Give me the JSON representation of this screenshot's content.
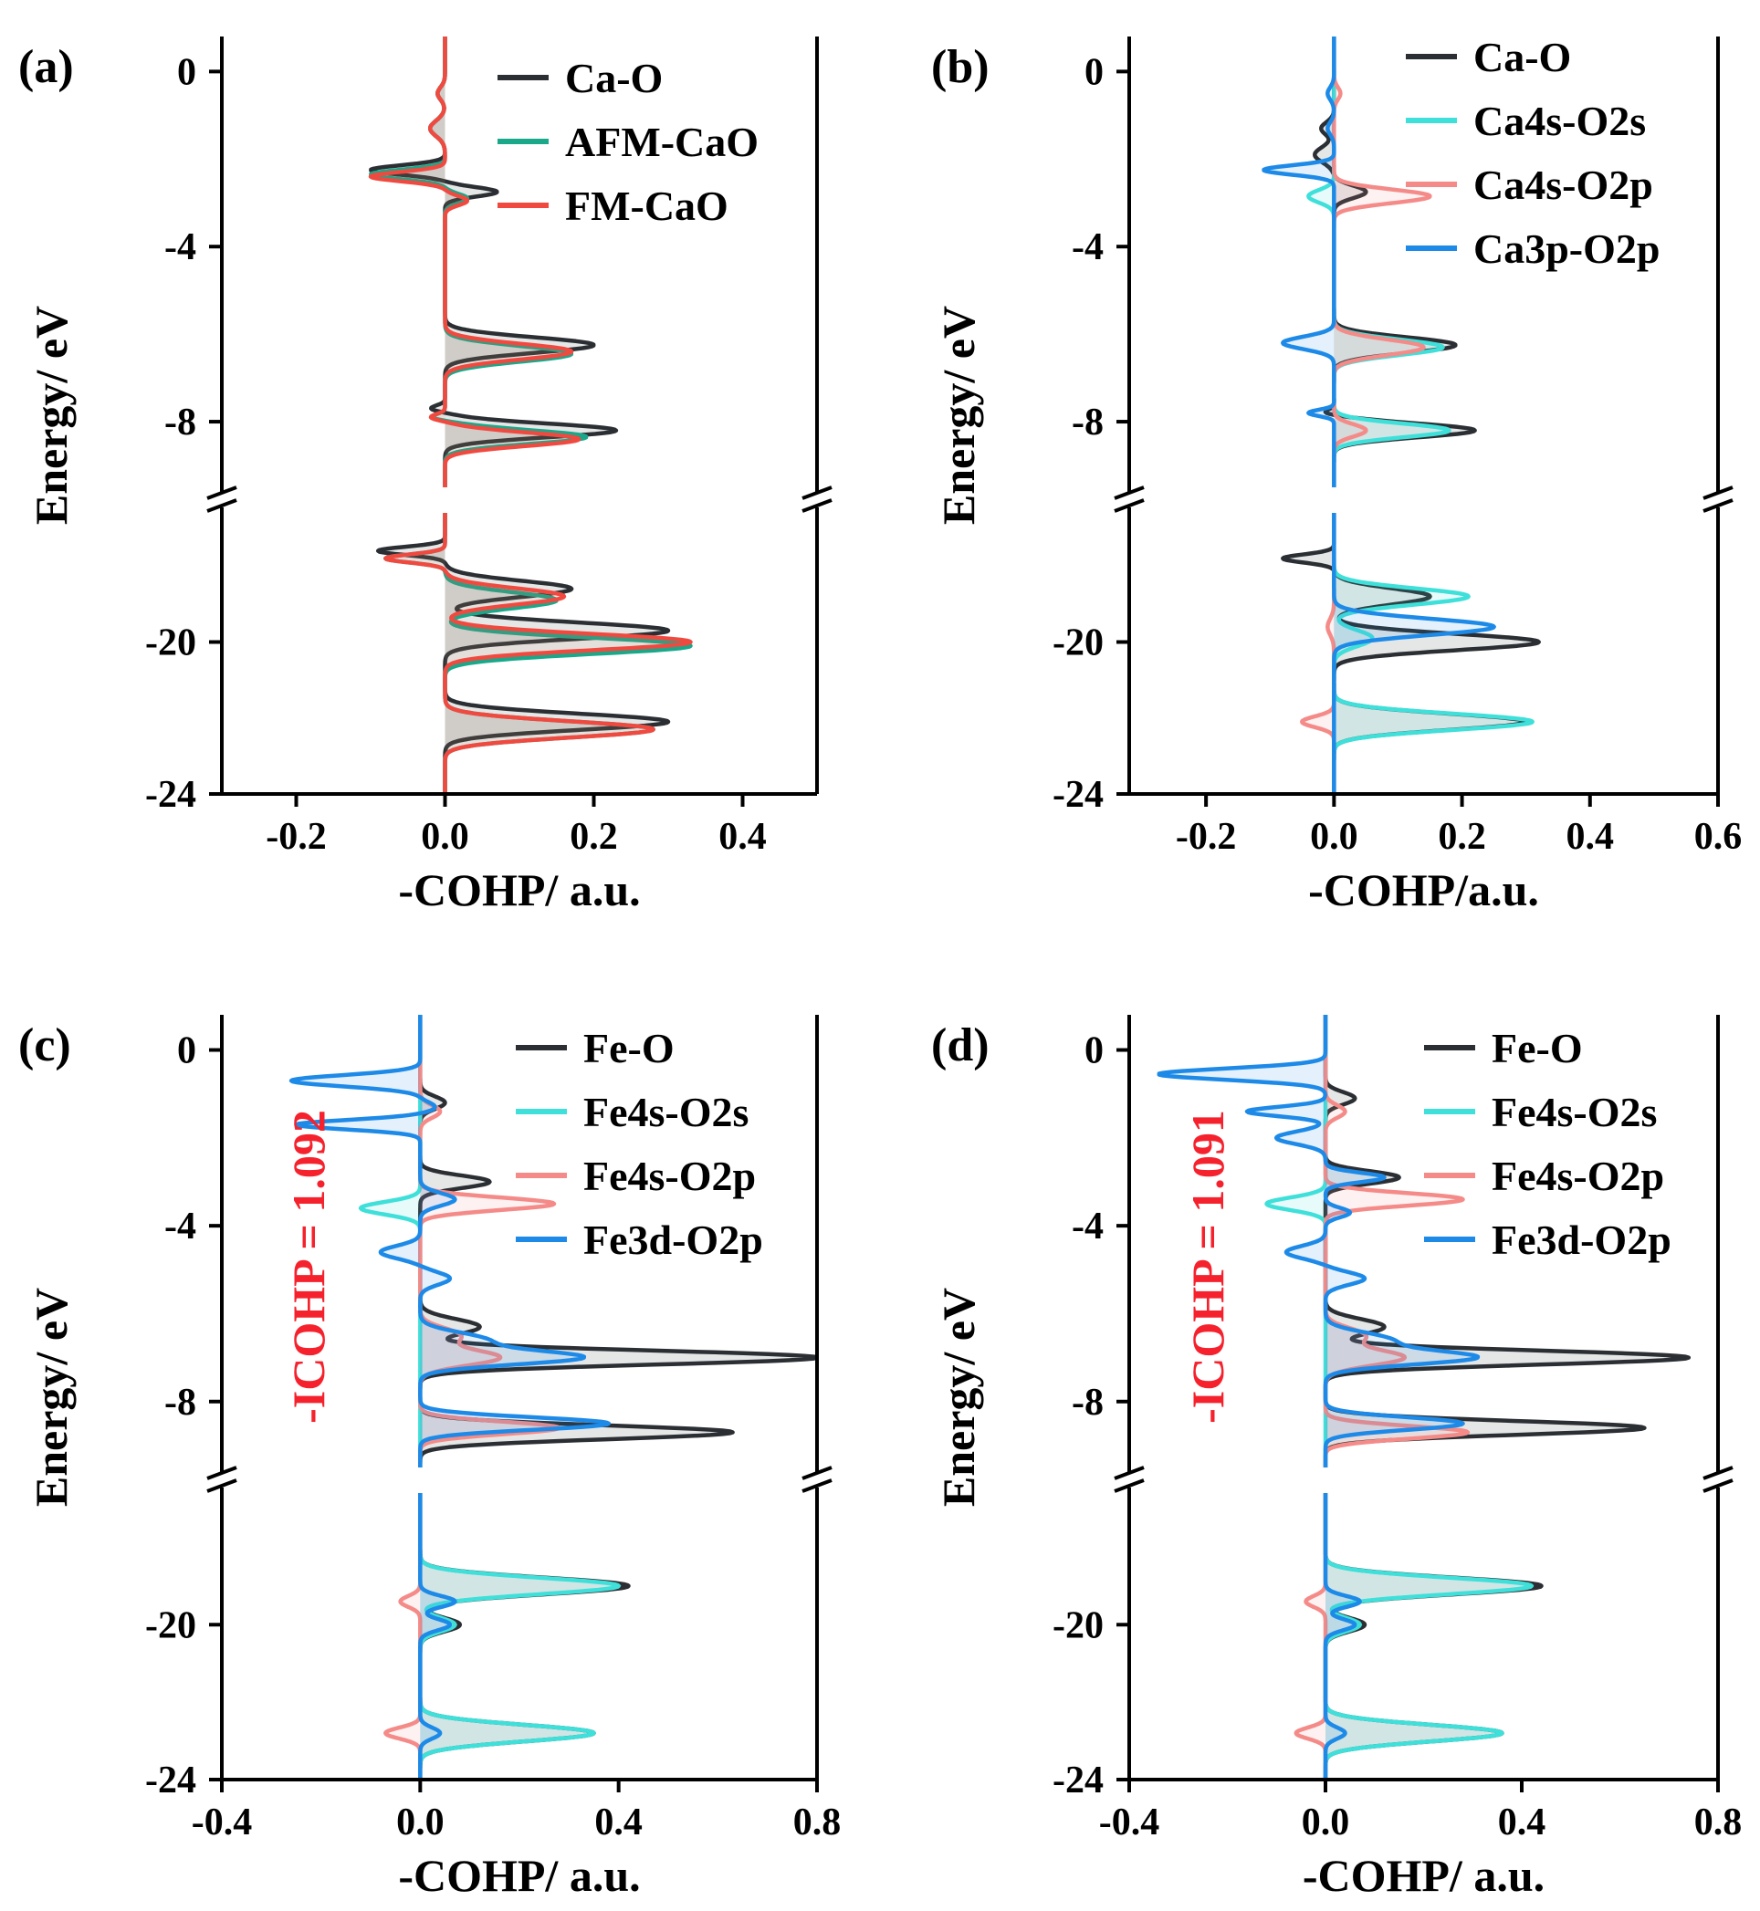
{
  "figure_title": "",
  "colors": {
    "black": "#2b2f33",
    "green": "#1aa88a",
    "red": "#f04a40",
    "cyan": "#3fe0da",
    "pink": "#f48b88",
    "blue": "#1d8ae8"
  },
  "chart_data": [
    {
      "type": "line",
      "panel": "(a)",
      "xlabel": "-COHP/ a.u.",
      "ylabel": "Energy/ eV",
      "xlim": [
        -0.3,
        0.5
      ],
      "ylim_upper": [
        -9.5,
        0.8
      ],
      "ylim_lower": [
        -24,
        -16.6
      ],
      "x_ticks": [
        "-0.2",
        "0.0",
        "0.2",
        "0.4"
      ],
      "x_tick_values": [
        -0.2,
        0.0,
        0.2,
        0.4
      ],
      "y_ticks_upper": [
        "0",
        "-4",
        "-8"
      ],
      "y_tick_values_upper": [
        0,
        -4,
        -8
      ],
      "y_ticks_lower": [
        "-20",
        "-24"
      ],
      "y_tick_values_lower": [
        -20,
        -24
      ],
      "legend": [
        "Ca-O",
        "AFM-CaO",
        "FM-CaO"
      ],
      "annotation": "",
      "series": [
        {
          "name": "Ca-O",
          "color": "#2b2f33",
          "peaks": [
            [
              -0.5,
              -0.01,
              0.2
            ],
            [
              -1.3,
              -0.02,
              0.25
            ],
            [
              -2.25,
              -0.1,
              0.15
            ],
            [
              -2.75,
              0.07,
              0.15
            ],
            [
              -6.25,
              0.2,
              0.25
            ],
            [
              -7.7,
              -0.02,
              0.1
            ],
            [
              -8.2,
              0.23,
              0.22
            ],
            [
              -17.6,
              -0.09,
              0.15
            ],
            [
              -18.6,
              0.17,
              0.3
            ],
            [
              -19.7,
              0.3,
              0.3
            ],
            [
              -22.1,
              0.3,
              0.3
            ]
          ]
        },
        {
          "name": "AFM-CaO",
          "color": "#1aa88a",
          "peaks": [
            [
              -0.5,
              -0.01,
              0.2
            ],
            [
              -1.3,
              -0.02,
              0.25
            ],
            [
              -2.35,
              -0.1,
              0.15
            ],
            [
              -2.9,
              0.03,
              0.15
            ],
            [
              -6.45,
              0.17,
              0.25
            ],
            [
              -7.9,
              -0.02,
              0.1
            ],
            [
              -8.35,
              0.19,
              0.22
            ],
            [
              -17.8,
              -0.08,
              0.15
            ],
            [
              -18.9,
              0.15,
              0.3
            ],
            [
              -20.1,
              0.33,
              0.3
            ],
            [
              -22.3,
              0.28,
              0.3
            ]
          ]
        },
        {
          "name": "FM-CaO",
          "color": "#f04a40",
          "peaks": [
            [
              -0.5,
              -0.01,
              0.2
            ],
            [
              -1.3,
              -0.02,
              0.25
            ],
            [
              -2.4,
              -0.1,
              0.15
            ],
            [
              -2.95,
              0.03,
              0.15
            ],
            [
              -6.4,
              0.17,
              0.25
            ],
            [
              -7.9,
              -0.02,
              0.1
            ],
            [
              -8.4,
              0.18,
              0.22
            ],
            [
              -17.8,
              -0.08,
              0.15
            ],
            [
              -18.8,
              0.16,
              0.3
            ],
            [
              -20.0,
              0.33,
              0.3
            ],
            [
              -22.3,
              0.28,
              0.3
            ]
          ]
        }
      ]
    },
    {
      "type": "line",
      "panel": "(b)",
      "xlabel": "-COHP/a.u.",
      "ylabel": "Energy/ eV",
      "xlim": [
        -0.32,
        0.6
      ],
      "ylim_upper": [
        -9.5,
        0.8
      ],
      "ylim_lower": [
        -24,
        -16.6
      ],
      "x_ticks": [
        "-0.2",
        "0.0",
        "0.2",
        "0.4",
        "0.6"
      ],
      "x_tick_values": [
        -0.2,
        0.0,
        0.2,
        0.4,
        0.6
      ],
      "y_ticks_upper": [
        "0",
        "-4",
        "-8"
      ],
      "y_tick_values_upper": [
        0,
        -4,
        -8
      ],
      "y_ticks_lower": [
        "-20",
        "-24"
      ],
      "y_tick_values_lower": [
        -20,
        -24
      ],
      "legend": [
        "Ca-O",
        "Ca4s-O2s",
        "Ca4s-O2p",
        "Ca3p-O2p"
      ],
      "annotation": "",
      "series": [
        {
          "name": "Ca-O",
          "color": "#2b2f33",
          "peaks": [
            [
              -1.3,
              -0.02,
              0.2
            ],
            [
              -1.9,
              -0.03,
              0.25
            ],
            [
              -2.75,
              0.05,
              0.2
            ],
            [
              -6.25,
              0.19,
              0.25
            ],
            [
              -7.8,
              -0.02,
              0.1
            ],
            [
              -8.2,
              0.22,
              0.22
            ],
            [
              -17.8,
              -0.08,
              0.15
            ],
            [
              -18.8,
              0.15,
              0.3
            ],
            [
              -20.0,
              0.32,
              0.3
            ],
            [
              -22.1,
              0.3,
              0.3
            ]
          ]
        },
        {
          "name": "Ca4s-O2s",
          "color": "#3fe0da",
          "peaks": [
            [
              -2.85,
              -0.04,
              0.2
            ],
            [
              -6.3,
              0.17,
              0.25
            ],
            [
              -8.2,
              0.18,
              0.22
            ],
            [
              -18.8,
              0.21,
              0.3
            ],
            [
              -19.9,
              0.06,
              0.3
            ],
            [
              -22.1,
              0.31,
              0.3
            ]
          ]
        },
        {
          "name": "Ca4s-O2p",
          "color": "#f48b88",
          "peaks": [
            [
              -0.5,
              0.01,
              0.2
            ],
            [
              -2.85,
              0.15,
              0.22
            ],
            [
              -6.3,
              0.14,
              0.25
            ],
            [
              -8.2,
              0.05,
              0.2
            ],
            [
              -22.1,
              -0.05,
              0.2
            ],
            [
              -19.6,
              -0.01,
              0.3
            ]
          ]
        },
        {
          "name": "Ca3p-O2p",
          "color": "#1d8ae8",
          "peaks": [
            [
              -0.5,
              -0.01,
              0.2
            ],
            [
              -1.3,
              -0.01,
              0.2
            ],
            [
              -2.25,
              -0.11,
              0.15
            ],
            [
              -6.2,
              -0.08,
              0.2
            ],
            [
              -7.8,
              -0.04,
              0.1
            ],
            [
              -19.6,
              0.25,
              0.3
            ]
          ]
        }
      ]
    },
    {
      "type": "line",
      "panel": "(c)",
      "xlabel": "-COHP/ a.u.",
      "ylabel": "Energy/ eV",
      "xlim": [
        -0.4,
        0.8
      ],
      "ylim_upper": [
        -9.5,
        0.8
      ],
      "ylim_lower": [
        -24,
        -16.6
      ],
      "x_ticks": [
        "-0.4",
        "0.0",
        "0.4",
        "0.8"
      ],
      "x_tick_values": [
        -0.4,
        0.0,
        0.4,
        0.8
      ],
      "y_ticks_upper": [
        "0",
        "-4",
        "-8"
      ],
      "y_tick_values_upper": [
        0,
        -4,
        -8
      ],
      "y_ticks_lower": [
        "-20",
        "-24"
      ],
      "y_tick_values_lower": [
        -20,
        -24
      ],
      "legend": [
        "Fe-O",
        "Fe4s-O2s",
        "Fe4s-O2p",
        "Fe3d-O2p"
      ],
      "annotation": "-ICOHP = 1.092",
      "series": [
        {
          "name": "Fe-O",
          "color": "#2b2f33",
          "peaks": [
            [
              -1.2,
              0.05,
              0.2
            ],
            [
              -3.0,
              0.14,
              0.2
            ],
            [
              -6.3,
              0.12,
              0.25
            ],
            [
              -7.0,
              0.8,
              0.22
            ],
            [
              -8.7,
              0.63,
              0.22
            ],
            [
              -19.0,
              0.42,
              0.3
            ],
            [
              -20.0,
              0.08,
              0.25
            ],
            [
              -22.8,
              0.35,
              0.3
            ]
          ]
        },
        {
          "name": "Fe4s-O2s",
          "color": "#3fe0da",
          "peaks": [
            [
              -3.6,
              -0.12,
              0.2
            ],
            [
              -19.0,
              0.4,
              0.3
            ],
            [
              -20.0,
              0.07,
              0.25
            ],
            [
              -22.8,
              0.35,
              0.3
            ]
          ]
        },
        {
          "name": "Fe4s-O2p",
          "color": "#f48b88",
          "peaks": [
            [
              -1.4,
              0.04,
              0.2
            ],
            [
              -3.5,
              0.27,
              0.2
            ],
            [
              -6.5,
              0.08,
              0.25
            ],
            [
              -7.0,
              0.16,
              0.25
            ],
            [
              -8.6,
              0.28,
              0.2
            ],
            [
              -19.4,
              -0.04,
              0.2
            ],
            [
              -22.8,
              -0.07,
              0.2
            ]
          ]
        },
        {
          "name": "Fe3d-O2p",
          "color": "#1d8ae8",
          "peaks": [
            [
              -0.7,
              -0.26,
              0.18
            ],
            [
              -1.3,
              0.03,
              0.15
            ],
            [
              -1.7,
              -0.25,
              0.15
            ],
            [
              -3.4,
              0.07,
              0.2
            ],
            [
              -4.6,
              -0.08,
              0.2
            ],
            [
              -5.2,
              0.06,
              0.2
            ],
            [
              -6.6,
              0.13,
              0.25
            ],
            [
              -7.0,
              0.32,
              0.22
            ],
            [
              -8.5,
              0.38,
              0.2
            ],
            [
              -19.4,
              0.07,
              0.2
            ],
            [
              -20.0,
              0.06,
              0.2
            ],
            [
              -22.8,
              0.04,
              0.2
            ]
          ]
        }
      ]
    },
    {
      "type": "line",
      "panel": "(d)",
      "xlabel": "-COHP/ a.u.",
      "ylabel": "Energy/ eV",
      "xlim": [
        -0.4,
        0.8
      ],
      "ylim_upper": [
        -9.5,
        0.8
      ],
      "ylim_lower": [
        -24,
        -16.6
      ],
      "x_ticks": [
        "-0.4",
        "0.0",
        "0.4",
        "0.8"
      ],
      "x_tick_values": [
        -0.4,
        0.0,
        0.4,
        0.8
      ],
      "y_ticks_upper": [
        "0",
        "-4",
        "-8"
      ],
      "y_tick_values_upper": [
        0,
        -4,
        -8
      ],
      "y_ticks_lower": [
        "-20",
        "-24"
      ],
      "y_tick_values_lower": [
        -20,
        -24
      ],
      "legend": [
        "Fe-O",
        "Fe4s-O2s",
        "Fe4s-O2p",
        "Fe3d-O2p"
      ],
      "annotation": "-ICOHP = 1.091",
      "series": [
        {
          "name": "Fe-O",
          "color": "#2b2f33",
          "peaks": [
            [
              -1.1,
              0.06,
              0.2
            ],
            [
              -2.9,
              0.15,
              0.2
            ],
            [
              -6.3,
              0.12,
              0.25
            ],
            [
              -7.0,
              0.74,
              0.22
            ],
            [
              -8.6,
              0.65,
              0.22
            ],
            [
              -19.0,
              0.44,
              0.3
            ],
            [
              -20.0,
              0.08,
              0.25
            ],
            [
              -22.8,
              0.36,
              0.3
            ]
          ]
        },
        {
          "name": "Fe4s-O2s",
          "color": "#3fe0da",
          "peaks": [
            [
              -3.5,
              -0.12,
              0.2
            ],
            [
              -19.0,
              0.42,
              0.3
            ],
            [
              -20.0,
              0.07,
              0.25
            ],
            [
              -22.8,
              0.36,
              0.3
            ]
          ]
        },
        {
          "name": "Fe4s-O2p",
          "color": "#f48b88",
          "peaks": [
            [
              -1.4,
              0.04,
              0.2
            ],
            [
              -3.4,
              0.28,
              0.2
            ],
            [
              -6.5,
              0.08,
              0.25
            ],
            [
              -7.0,
              0.16,
              0.25
            ],
            [
              -8.7,
              0.29,
              0.2
            ],
            [
              -19.4,
              -0.04,
              0.2
            ],
            [
              -22.8,
              -0.06,
              0.2
            ]
          ]
        },
        {
          "name": "Fe3d-O2p",
          "color": "#1d8ae8",
          "peaks": [
            [
              -0.55,
              -0.34,
              0.18
            ],
            [
              -1.4,
              -0.16,
              0.15
            ],
            [
              -2.0,
              -0.1,
              0.2
            ],
            [
              -2.9,
              0.12,
              0.15
            ],
            [
              -3.7,
              0.05,
              0.15
            ],
            [
              -4.6,
              -0.08,
              0.2
            ],
            [
              -5.2,
              0.08,
              0.2
            ],
            [
              -6.6,
              0.13,
              0.25
            ],
            [
              -7.0,
              0.3,
              0.22
            ],
            [
              -8.5,
              0.28,
              0.2
            ],
            [
              -19.4,
              0.07,
              0.2
            ],
            [
              -20.0,
              0.06,
              0.2
            ],
            [
              -22.8,
              0.04,
              0.2
            ]
          ]
        }
      ]
    }
  ]
}
